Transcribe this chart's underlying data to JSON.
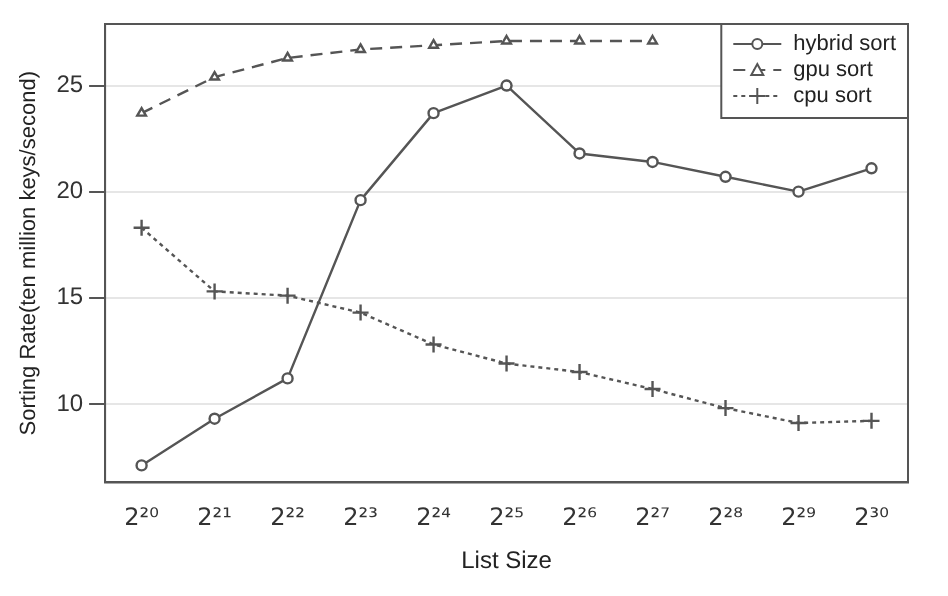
{
  "chart_data": {
    "type": "line",
    "xlabel": "List Size",
    "ylabel": "Sorting Rate(ten million keys/second)",
    "categories": [
      "2²⁰",
      "2²¹",
      "2²²",
      "2²³",
      "2²⁴",
      "2²⁵",
      "2²⁶",
      "2²⁷",
      "2²⁸",
      "2²⁹",
      "2³⁰"
    ],
    "series": [
      {
        "name": "hybrid sort",
        "color": "#555555",
        "marker": "circle",
        "line_style": "solid",
        "values": [
          7.1,
          9.3,
          11.2,
          19.6,
          23.7,
          25.0,
          21.8,
          21.4,
          20.7,
          20.0,
          21.1
        ]
      },
      {
        "name": "gpu sort",
        "color": "#555555",
        "marker": "triangle",
        "line_style": "dashed",
        "values": [
          23.7,
          25.4,
          26.3,
          26.7,
          26.9,
          27.1,
          27.1,
          27.1,
          null,
          null,
          null
        ]
      },
      {
        "name": "cpu sort",
        "color": "#555555",
        "marker": "cross",
        "line_style": "dotted",
        "values": [
          18.3,
          15.3,
          15.1,
          14.3,
          12.8,
          11.9,
          11.5,
          10.7,
          9.8,
          9.1,
          9.2
        ]
      }
    ],
    "ylim": [
      6.3,
      27.9
    ],
    "yticks": [
      10,
      15,
      20,
      25
    ],
    "grid": "y",
    "legend": "top right"
  }
}
